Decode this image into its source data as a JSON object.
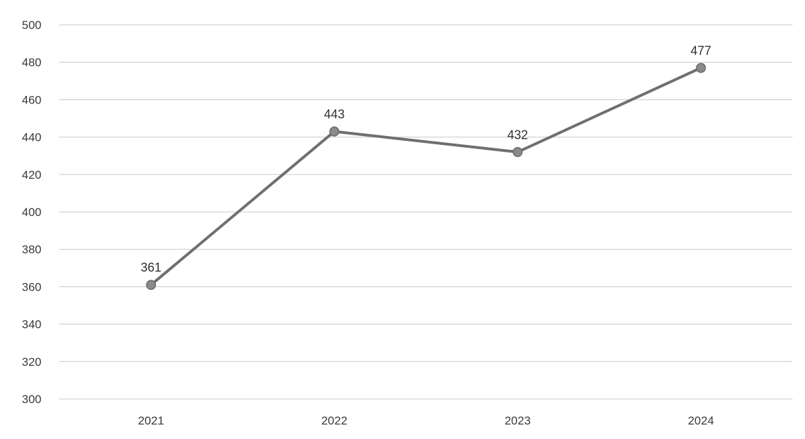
{
  "chart_data": {
    "type": "line",
    "title": "",
    "xlabel": "",
    "ylabel": "",
    "categories": [
      "2021",
      "2022",
      "2023",
      "2024"
    ],
    "series": [
      {
        "values": [
          361,
          443,
          432,
          477
        ],
        "data_labels": [
          "361",
          "443",
          "432",
          "477"
        ],
        "color": "#6f6f6f"
      }
    ],
    "ylim": [
      300,
      500
    ],
    "yticks": [
      300,
      320,
      340,
      360,
      380,
      400,
      420,
      440,
      460,
      480,
      500
    ],
    "ytick_labels": [
      "300",
      "320",
      "340",
      "360",
      "380",
      "400",
      "420",
      "440",
      "460",
      "480",
      "500"
    ],
    "grid": true,
    "legend": "none"
  }
}
